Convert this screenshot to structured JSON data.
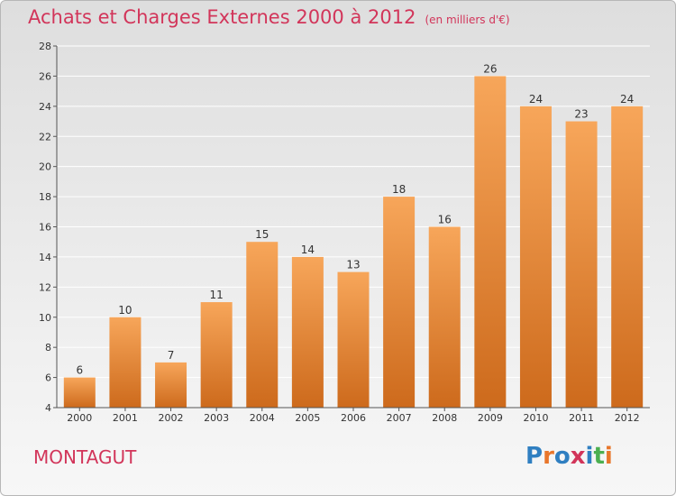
{
  "title": "Achats et Charges Externes 2000 à 2012",
  "unit": "(en milliers d'€)",
  "commune": "MONTAGUT",
  "brand": "Proxiti",
  "brand_colors": [
    "#2f7fc1",
    "#e8762b",
    "#2f7fc1",
    "#d2355a",
    "#2f7fc1",
    "#4caf50",
    "#e8762b"
  ],
  "colors": {
    "title": "#d2355a",
    "bar_top": "#f7a65a",
    "bar_bottom": "#cd6a1c",
    "grid": "#ffffff",
    "axis_text": "#333333"
  },
  "chart_data": {
    "type": "bar",
    "categories": [
      "2000",
      "2001",
      "2002",
      "2003",
      "2004",
      "2005",
      "2006",
      "2007",
      "2008",
      "2009",
      "2010",
      "2011",
      "2012"
    ],
    "values": [
      6,
      10,
      7,
      11,
      15,
      14,
      13,
      18,
      16,
      26,
      24,
      23,
      24
    ],
    "yticks": [
      4,
      6,
      8,
      10,
      12,
      14,
      16,
      18,
      20,
      22,
      24,
      26,
      28
    ],
    "ylim": [
      4,
      28
    ],
    "grid": true,
    "data_labels": true
  }
}
